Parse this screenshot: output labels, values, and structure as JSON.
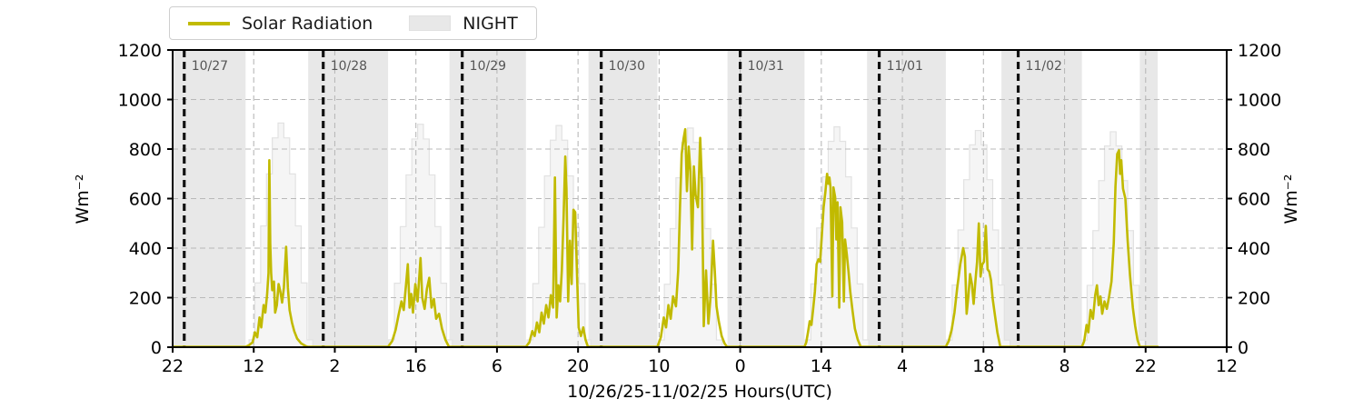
{
  "chart_data": {
    "type": "line",
    "title": "",
    "xlabel": "10/26/25-11/02/25  Hours(UTC)",
    "ylabel": "Wm⁻²",
    "ylabel_right": "Wm⁻²",
    "x_range_hours": [
      0,
      182
    ],
    "x_start_label": "10/26/25 22:00 UTC",
    "ylim": [
      0,
      1200
    ],
    "y_ticks": [
      0,
      200,
      400,
      600,
      800,
      1000,
      1200
    ],
    "x_ticks": [
      {
        "t": 0,
        "label": "22"
      },
      {
        "t": 14,
        "label": "12"
      },
      {
        "t": 28,
        "label": "2"
      },
      {
        "t": 42,
        "label": "16"
      },
      {
        "t": 56,
        "label": "6"
      },
      {
        "t": 70,
        "label": "20"
      },
      {
        "t": 84,
        "label": "10"
      },
      {
        "t": 98,
        "label": "0"
      },
      {
        "t": 112,
        "label": "14"
      },
      {
        "t": 126,
        "label": "4"
      },
      {
        "t": 140,
        "label": "18"
      },
      {
        "t": 154,
        "label": "8"
      },
      {
        "t": 168,
        "label": "22"
      },
      {
        "t": 182,
        "label": "12"
      }
    ],
    "legend": [
      {
        "label": "Solar Radiation",
        "type": "line",
        "color": "#c1ba00"
      },
      {
        "label": "NIGHT",
        "type": "patch",
        "color": "#e8e8e8"
      }
    ],
    "day_markers": [
      {
        "t": 2,
        "label": "10/27"
      },
      {
        "t": 26,
        "label": "10/28"
      },
      {
        "t": 50,
        "label": "10/29"
      },
      {
        "t": 74,
        "label": "10/30"
      },
      {
        "t": 98,
        "label": "10/31"
      },
      {
        "t": 122,
        "label": "11/01"
      },
      {
        "t": 146,
        "label": "11/02"
      }
    ],
    "night_bands": [
      [
        0,
        12.6
      ],
      [
        23.4,
        37.2
      ],
      [
        47.8,
        61.0
      ],
      [
        71.8,
        83.7
      ],
      [
        95.8,
        109.1
      ],
      [
        119.9,
        133.5
      ],
      [
        143.1,
        157.0
      ],
      [
        167.0,
        170.1
      ]
    ],
    "clear_sky_envelope": {
      "profile": [
        0.033,
        0.287,
        0.541,
        0.773,
        0.934,
        1.0,
        0.934,
        0.773,
        0.541,
        0.287,
        0.033
      ],
      "step_hours": 1,
      "days": [
        {
          "start": 13.2,
          "peak": 905
        },
        {
          "start": 37.3,
          "peak": 900
        },
        {
          "start": 61.2,
          "peak": 895
        },
        {
          "start": 83.9,
          "peak": 885
        },
        {
          "start": 109.2,
          "peak": 890
        },
        {
          "start": 133.6,
          "peak": 875
        },
        {
          "start": 156.9,
          "peak": 870
        }
      ]
    },
    "series": [
      {
        "name": "Solar Radiation",
        "units": "Wm⁻²",
        "color": "#c1ba00",
        "points": [
          [
            0,
            2
          ],
          [
            12.6,
            2
          ],
          [
            13.2,
            8
          ],
          [
            13.8,
            20
          ],
          [
            14.2,
            60
          ],
          [
            14.6,
            40
          ],
          [
            15.0,
            120
          ],
          [
            15.3,
            80
          ],
          [
            15.7,
            170
          ],
          [
            16.0,
            140
          ],
          [
            16.3,
            210
          ],
          [
            16.55,
            300
          ],
          [
            16.7,
            755
          ],
          [
            16.85,
            420
          ],
          [
            17.0,
            300
          ],
          [
            17.2,
            230
          ],
          [
            17.5,
            265
          ],
          [
            17.7,
            140
          ],
          [
            18.0,
            170
          ],
          [
            18.3,
            255
          ],
          [
            18.6,
            225
          ],
          [
            18.9,
            180
          ],
          [
            19.2,
            240
          ],
          [
            19.6,
            405
          ],
          [
            19.9,
            240
          ],
          [
            20.2,
            150
          ],
          [
            20.6,
            100
          ],
          [
            21.0,
            65
          ],
          [
            21.5,
            35
          ],
          [
            22.2,
            15
          ],
          [
            23.0,
            4
          ],
          [
            23.3,
            2
          ],
          [
            37.2,
            2
          ],
          [
            37.9,
            25
          ],
          [
            38.5,
            70
          ],
          [
            39.0,
            130
          ],
          [
            39.5,
            185
          ],
          [
            39.9,
            150
          ],
          [
            40.3,
            255
          ],
          [
            40.6,
            335
          ],
          [
            40.9,
            160
          ],
          [
            41.2,
            215
          ],
          [
            41.5,
            140
          ],
          [
            41.9,
            255
          ],
          [
            42.3,
            185
          ],
          [
            42.8,
            360
          ],
          [
            43.1,
            200
          ],
          [
            43.5,
            155
          ],
          [
            43.9,
            235
          ],
          [
            44.3,
            280
          ],
          [
            44.7,
            160
          ],
          [
            45.1,
            195
          ],
          [
            45.5,
            115
          ],
          [
            46.0,
            135
          ],
          [
            46.5,
            75
          ],
          [
            47.1,
            30
          ],
          [
            47.7,
            2
          ],
          [
            61.0,
            2
          ],
          [
            61.6,
            20
          ],
          [
            62.1,
            65
          ],
          [
            62.5,
            45
          ],
          [
            62.9,
            100
          ],
          [
            63.3,
            60
          ],
          [
            63.7,
            140
          ],
          [
            64.1,
            95
          ],
          [
            64.5,
            170
          ],
          [
            64.9,
            120
          ],
          [
            65.3,
            210
          ],
          [
            65.7,
            160
          ],
          [
            66.0,
            685
          ],
          [
            66.3,
            120
          ],
          [
            66.6,
            250
          ],
          [
            66.9,
            185
          ],
          [
            67.2,
            310
          ],
          [
            67.5,
            520
          ],
          [
            67.8,
            770
          ],
          [
            68.0,
            640
          ],
          [
            68.3,
            185
          ],
          [
            68.6,
            430
          ],
          [
            68.9,
            255
          ],
          [
            69.2,
            555
          ],
          [
            69.5,
            545
          ],
          [
            69.8,
            310
          ],
          [
            70.1,
            80
          ],
          [
            70.5,
            45
          ],
          [
            70.9,
            80
          ],
          [
            71.3,
            30
          ],
          [
            71.7,
            2
          ],
          [
            83.7,
            2
          ],
          [
            84.3,
            40
          ],
          [
            84.8,
            120
          ],
          [
            85.2,
            80
          ],
          [
            85.6,
            170
          ],
          [
            86.0,
            115
          ],
          [
            86.4,
            205
          ],
          [
            86.9,
            165
          ],
          [
            87.3,
            310
          ],
          [
            87.6,
            560
          ],
          [
            87.9,
            780
          ],
          [
            88.2,
            840
          ],
          [
            88.5,
            880
          ],
          [
            88.8,
            630
          ],
          [
            89.1,
            810
          ],
          [
            89.4,
            710
          ],
          [
            89.7,
            395
          ],
          [
            90.0,
            730
          ],
          [
            90.3,
            615
          ],
          [
            90.7,
            565
          ],
          [
            91.1,
            845
          ],
          [
            91.4,
            660
          ],
          [
            91.7,
            85
          ],
          [
            92.1,
            310
          ],
          [
            92.5,
            95
          ],
          [
            92.9,
            210
          ],
          [
            93.3,
            430
          ],
          [
            93.6,
            310
          ],
          [
            93.9,
            165
          ],
          [
            94.3,
            105
          ],
          [
            94.8,
            45
          ],
          [
            95.3,
            15
          ],
          [
            95.7,
            2
          ],
          [
            109.1,
            2
          ],
          [
            109.4,
            20
          ],
          [
            109.7,
            60
          ],
          [
            110.0,
            105
          ],
          [
            110.3,
            90
          ],
          [
            110.6,
            155
          ],
          [
            110.9,
            225
          ],
          [
            111.2,
            335
          ],
          [
            111.5,
            355
          ],
          [
            111.8,
            345
          ],
          [
            112.1,
            455
          ],
          [
            112.4,
            565
          ],
          [
            112.7,
            625
          ],
          [
            113.0,
            700
          ],
          [
            113.2,
            660
          ],
          [
            113.4,
            685
          ],
          [
            113.6,
            645
          ],
          [
            113.9,
            205
          ],
          [
            114.1,
            645
          ],
          [
            114.4,
            605
          ],
          [
            114.6,
            435
          ],
          [
            114.8,
            585
          ],
          [
            115.1,
            160
          ],
          [
            115.3,
            565
          ],
          [
            115.6,
            505
          ],
          [
            115.9,
            185
          ],
          [
            116.1,
            435
          ],
          [
            116.4,
            375
          ],
          [
            116.7,
            305
          ],
          [
            117.0,
            225
          ],
          [
            117.4,
            145
          ],
          [
            117.8,
            75
          ],
          [
            118.3,
            30
          ],
          [
            118.8,
            2
          ],
          [
            133.5,
            2
          ],
          [
            134.0,
            25
          ],
          [
            134.5,
            70
          ],
          [
            135.0,
            140
          ],
          [
            135.5,
            245
          ],
          [
            136.0,
            335
          ],
          [
            136.5,
            400
          ],
          [
            136.8,
            365
          ],
          [
            137.1,
            135
          ],
          [
            137.4,
            205
          ],
          [
            137.7,
            295
          ],
          [
            138.0,
            255
          ],
          [
            138.3,
            175
          ],
          [
            138.6,
            265
          ],
          [
            138.9,
            345
          ],
          [
            139.2,
            500
          ],
          [
            139.5,
            285
          ],
          [
            139.8,
            335
          ],
          [
            140.1,
            345
          ],
          [
            140.4,
            490
          ],
          [
            140.7,
            315
          ],
          [
            141.0,
            305
          ],
          [
            141.3,
            270
          ],
          [
            141.6,
            195
          ],
          [
            142.0,
            125
          ],
          [
            142.4,
            60
          ],
          [
            142.9,
            2
          ],
          [
            157.0,
            2
          ],
          [
            157.4,
            25
          ],
          [
            157.8,
            90
          ],
          [
            158.1,
            60
          ],
          [
            158.5,
            150
          ],
          [
            158.9,
            115
          ],
          [
            159.3,
            210
          ],
          [
            159.6,
            250
          ],
          [
            159.9,
            170
          ],
          [
            160.2,
            205
          ],
          [
            160.5,
            135
          ],
          [
            160.9,
            185
          ],
          [
            161.3,
            155
          ],
          [
            161.7,
            205
          ],
          [
            162.1,
            265
          ],
          [
            162.5,
            420
          ],
          [
            162.8,
            650
          ],
          [
            163.1,
            780
          ],
          [
            163.4,
            795
          ],
          [
            163.6,
            700
          ],
          [
            163.8,
            755
          ],
          [
            164.1,
            640
          ],
          [
            164.5,
            600
          ],
          [
            164.9,
            430
          ],
          [
            165.3,
            290
          ],
          [
            165.8,
            160
          ],
          [
            166.2,
            85
          ],
          [
            166.6,
            30
          ],
          [
            167.0,
            2
          ],
          [
            170.1,
            2
          ]
        ]
      }
    ],
    "colors": {
      "line": "#c1ba00",
      "night_band": "#e8e8e8",
      "envelope_fill": "#f5f5f5",
      "envelope_edge": "#e2e2e2",
      "grid": "#b9b9b9",
      "spine": "#000000",
      "day_marker_line": "#111111",
      "day_marker_text": "#555555",
      "tick_text": "#000000"
    },
    "grid": {
      "enabled": true,
      "style": "dashed"
    },
    "legend_position": "top-left-outside"
  }
}
